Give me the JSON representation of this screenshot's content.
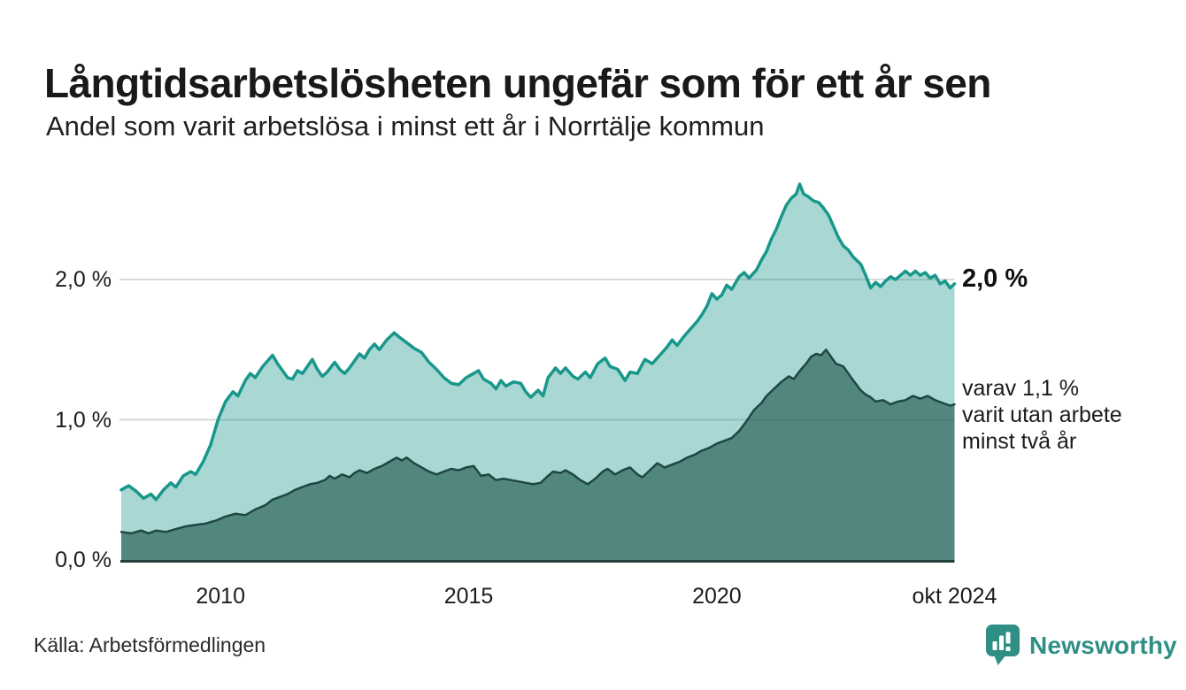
{
  "header": {
    "title": "Långtidsarbetslösheten ungefär som för ett år sen",
    "subtitle": "Andel som varit arbetslösa i minst ett år i Norrtälje kommun"
  },
  "annotations": {
    "total_end_label": "2,0 %",
    "subset_lines": [
      "varav 1,1 %",
      "varit utan arbete",
      "minst två år"
    ]
  },
  "footer": {
    "source": "Källa: Arbetsförmedlingen",
    "brand": "Newsworthy"
  },
  "colors": {
    "title": "#191919",
    "grid": "#d9d9d9",
    "axis_line": "#23403c",
    "series_total_line": "#18978a",
    "series_total_fill": "rgba(23,150,137,0.37)",
    "series_subset_line": "#1d4742",
    "series_subset_fill": "rgba(31,87,78,0.63)",
    "brand_teal": "#2f8f85"
  },
  "chart_data": {
    "type": "area",
    "title": "Långtidsarbetslösheten ungefär som för ett år sen",
    "subtitle": "Andel som varit arbetslösa i minst ett år i Norrtälje kommun",
    "xlabel": "",
    "ylabel": "",
    "x_range": [
      2008.0,
      2024.79
    ],
    "ylim": [
      0,
      2.8
    ],
    "grid_values": [
      1.0,
      2.0
    ],
    "legend_position": "right-annotations",
    "y_axis_ticks": [
      {
        "value": 0.0,
        "label": "0,0 %"
      },
      {
        "value": 1.0,
        "label": "1,0 %"
      },
      {
        "value": 2.0,
        "label": "2,0 %"
      }
    ],
    "x_axis_ticks": [
      {
        "value": 2010.0,
        "label": "2010"
      },
      {
        "value": 2015.0,
        "label": "2015"
      },
      {
        "value": 2020.0,
        "label": "2020"
      },
      {
        "value": 2024.79,
        "label": "okt 2024"
      }
    ],
    "series": [
      {
        "name": "Andel arbetslösa minst ett år",
        "end_value_label": "2,0 %",
        "end_value": 2.0,
        "points": [
          [
            2008.0,
            0.5
          ],
          [
            2008.15,
            0.53
          ],
          [
            2008.3,
            0.49
          ],
          [
            2008.45,
            0.44
          ],
          [
            2008.6,
            0.47
          ],
          [
            2008.7,
            0.43
          ],
          [
            2008.85,
            0.5
          ],
          [
            2009.0,
            0.55
          ],
          [
            2009.1,
            0.52
          ],
          [
            2009.25,
            0.6
          ],
          [
            2009.4,
            0.63
          ],
          [
            2009.5,
            0.61
          ],
          [
            2009.65,
            0.7
          ],
          [
            2009.8,
            0.82
          ],
          [
            2009.95,
            1.0
          ],
          [
            2010.1,
            1.13
          ],
          [
            2010.25,
            1.2
          ],
          [
            2010.35,
            1.17
          ],
          [
            2010.5,
            1.28
          ],
          [
            2010.6,
            1.33
          ],
          [
            2010.7,
            1.3
          ],
          [
            2010.85,
            1.38
          ],
          [
            2010.95,
            1.42
          ],
          [
            2011.05,
            1.46
          ],
          [
            2011.15,
            1.4
          ],
          [
            2011.25,
            1.35
          ],
          [
            2011.35,
            1.3
          ],
          [
            2011.45,
            1.29
          ],
          [
            2011.55,
            1.35
          ],
          [
            2011.65,
            1.33
          ],
          [
            2011.75,
            1.38
          ],
          [
            2011.85,
            1.43
          ],
          [
            2011.95,
            1.36
          ],
          [
            2012.05,
            1.31
          ],
          [
            2012.15,
            1.34
          ],
          [
            2012.3,
            1.41
          ],
          [
            2012.4,
            1.36
          ],
          [
            2012.5,
            1.33
          ],
          [
            2012.6,
            1.37
          ],
          [
            2012.7,
            1.42
          ],
          [
            2012.8,
            1.47
          ],
          [
            2012.9,
            1.44
          ],
          [
            2013.0,
            1.5
          ],
          [
            2013.1,
            1.54
          ],
          [
            2013.2,
            1.5
          ],
          [
            2013.35,
            1.57
          ],
          [
            2013.5,
            1.62
          ],
          [
            2013.6,
            1.59
          ],
          [
            2013.75,
            1.55
          ],
          [
            2013.9,
            1.51
          ],
          [
            2014.05,
            1.48
          ],
          [
            2014.2,
            1.41
          ],
          [
            2014.35,
            1.36
          ],
          [
            2014.5,
            1.3
          ],
          [
            2014.65,
            1.26
          ],
          [
            2014.8,
            1.25
          ],
          [
            2014.95,
            1.3
          ],
          [
            2015.1,
            1.33
          ],
          [
            2015.2,
            1.35
          ],
          [
            2015.3,
            1.29
          ],
          [
            2015.45,
            1.26
          ],
          [
            2015.55,
            1.22
          ],
          [
            2015.65,
            1.28
          ],
          [
            2015.75,
            1.24
          ],
          [
            2015.9,
            1.27
          ],
          [
            2016.05,
            1.26
          ],
          [
            2016.15,
            1.2
          ],
          [
            2016.25,
            1.16
          ],
          [
            2016.4,
            1.21
          ],
          [
            2016.5,
            1.17
          ],
          [
            2016.6,
            1.3
          ],
          [
            2016.75,
            1.37
          ],
          [
            2016.85,
            1.33
          ],
          [
            2016.95,
            1.37
          ],
          [
            2017.1,
            1.31
          ],
          [
            2017.2,
            1.29
          ],
          [
            2017.35,
            1.34
          ],
          [
            2017.45,
            1.3
          ],
          [
            2017.6,
            1.4
          ],
          [
            2017.75,
            1.44
          ],
          [
            2017.85,
            1.38
          ],
          [
            2018.0,
            1.36
          ],
          [
            2018.15,
            1.28
          ],
          [
            2018.25,
            1.34
          ],
          [
            2018.4,
            1.33
          ],
          [
            2018.55,
            1.43
          ],
          [
            2018.7,
            1.4
          ],
          [
            2018.85,
            1.46
          ],
          [
            2019.0,
            1.52
          ],
          [
            2019.1,
            1.57
          ],
          [
            2019.2,
            1.53
          ],
          [
            2019.35,
            1.6
          ],
          [
            2019.5,
            1.66
          ],
          [
            2019.6,
            1.7
          ],
          [
            2019.7,
            1.75
          ],
          [
            2019.8,
            1.81
          ],
          [
            2019.9,
            1.9
          ],
          [
            2020.0,
            1.86
          ],
          [
            2020.1,
            1.89
          ],
          [
            2020.2,
            1.96
          ],
          [
            2020.3,
            1.93
          ],
          [
            2020.45,
            2.02
          ],
          [
            2020.55,
            2.05
          ],
          [
            2020.65,
            2.01
          ],
          [
            2020.8,
            2.07
          ],
          [
            2020.9,
            2.14
          ],
          [
            2021.0,
            2.2
          ],
          [
            2021.1,
            2.29
          ],
          [
            2021.2,
            2.36
          ],
          [
            2021.3,
            2.45
          ],
          [
            2021.4,
            2.53
          ],
          [
            2021.5,
            2.58
          ],
          [
            2021.6,
            2.61
          ],
          [
            2021.67,
            2.68
          ],
          [
            2021.75,
            2.61
          ],
          [
            2021.85,
            2.59
          ],
          [
            2021.95,
            2.56
          ],
          [
            2022.05,
            2.55
          ],
          [
            2022.15,
            2.51
          ],
          [
            2022.25,
            2.46
          ],
          [
            2022.35,
            2.38
          ],
          [
            2022.45,
            2.3
          ],
          [
            2022.55,
            2.24
          ],
          [
            2022.65,
            2.21
          ],
          [
            2022.75,
            2.16
          ],
          [
            2022.9,
            2.11
          ],
          [
            2023.0,
            2.03
          ],
          [
            2023.1,
            1.94
          ],
          [
            2023.2,
            1.98
          ],
          [
            2023.3,
            1.95
          ],
          [
            2023.4,
            1.99
          ],
          [
            2023.5,
            2.02
          ],
          [
            2023.6,
            2.0
          ],
          [
            2023.7,
            2.03
          ],
          [
            2023.8,
            2.06
          ],
          [
            2023.9,
            2.03
          ],
          [
            2024.0,
            2.06
          ],
          [
            2024.1,
            2.03
          ],
          [
            2024.2,
            2.05
          ],
          [
            2024.3,
            2.01
          ],
          [
            2024.4,
            2.03
          ],
          [
            2024.5,
            1.97
          ],
          [
            2024.6,
            1.99
          ],
          [
            2024.7,
            1.94
          ],
          [
            2024.79,
            1.97
          ]
        ]
      },
      {
        "name": "Varav arbetslösa minst två år",
        "end_value_label": "varav 1,1 % varit utan arbete minst två år",
        "end_value": 1.1,
        "points": [
          [
            2008.0,
            0.2
          ],
          [
            2008.2,
            0.19
          ],
          [
            2008.4,
            0.21
          ],
          [
            2008.55,
            0.19
          ],
          [
            2008.7,
            0.21
          ],
          [
            2008.9,
            0.2
          ],
          [
            2009.1,
            0.22
          ],
          [
            2009.3,
            0.24
          ],
          [
            2009.5,
            0.25
          ],
          [
            2009.7,
            0.26
          ],
          [
            2009.9,
            0.28
          ],
          [
            2010.1,
            0.31
          ],
          [
            2010.3,
            0.33
          ],
          [
            2010.5,
            0.32
          ],
          [
            2010.7,
            0.36
          ],
          [
            2010.9,
            0.39
          ],
          [
            2011.05,
            0.43
          ],
          [
            2011.2,
            0.45
          ],
          [
            2011.35,
            0.47
          ],
          [
            2011.5,
            0.5
          ],
          [
            2011.65,
            0.52
          ],
          [
            2011.8,
            0.54
          ],
          [
            2011.95,
            0.55
          ],
          [
            2012.1,
            0.57
          ],
          [
            2012.2,
            0.6
          ],
          [
            2012.3,
            0.58
          ],
          [
            2012.45,
            0.61
          ],
          [
            2012.6,
            0.59
          ],
          [
            2012.7,
            0.62
          ],
          [
            2012.8,
            0.64
          ],
          [
            2012.95,
            0.62
          ],
          [
            2013.1,
            0.65
          ],
          [
            2013.25,
            0.67
          ],
          [
            2013.4,
            0.7
          ],
          [
            2013.55,
            0.73
          ],
          [
            2013.65,
            0.71
          ],
          [
            2013.75,
            0.73
          ],
          [
            2013.9,
            0.69
          ],
          [
            2014.05,
            0.66
          ],
          [
            2014.2,
            0.63
          ],
          [
            2014.35,
            0.61
          ],
          [
            2014.5,
            0.63
          ],
          [
            2014.65,
            0.65
          ],
          [
            2014.8,
            0.64
          ],
          [
            2014.95,
            0.66
          ],
          [
            2015.1,
            0.67
          ],
          [
            2015.25,
            0.6
          ],
          [
            2015.4,
            0.61
          ],
          [
            2015.55,
            0.57
          ],
          [
            2015.7,
            0.58
          ],
          [
            2015.85,
            0.57
          ],
          [
            2016.0,
            0.56
          ],
          [
            2016.15,
            0.55
          ],
          [
            2016.3,
            0.54
          ],
          [
            2016.45,
            0.55
          ],
          [
            2016.6,
            0.6
          ],
          [
            2016.7,
            0.63
          ],
          [
            2016.85,
            0.62
          ],
          [
            2016.95,
            0.64
          ],
          [
            2017.1,
            0.61
          ],
          [
            2017.25,
            0.57
          ],
          [
            2017.4,
            0.54
          ],
          [
            2017.55,
            0.58
          ],
          [
            2017.7,
            0.63
          ],
          [
            2017.8,
            0.65
          ],
          [
            2017.95,
            0.61
          ],
          [
            2018.1,
            0.64
          ],
          [
            2018.25,
            0.66
          ],
          [
            2018.4,
            0.61
          ],
          [
            2018.5,
            0.59
          ],
          [
            2018.65,
            0.64
          ],
          [
            2018.8,
            0.69
          ],
          [
            2018.95,
            0.66
          ],
          [
            2019.1,
            0.68
          ],
          [
            2019.25,
            0.7
          ],
          [
            2019.4,
            0.73
          ],
          [
            2019.55,
            0.75
          ],
          [
            2019.7,
            0.78
          ],
          [
            2019.85,
            0.8
          ],
          [
            2020.0,
            0.83
          ],
          [
            2020.15,
            0.85
          ],
          [
            2020.3,
            0.87
          ],
          [
            2020.45,
            0.92
          ],
          [
            2020.6,
            0.99
          ],
          [
            2020.75,
            1.07
          ],
          [
            2020.9,
            1.12
          ],
          [
            2021.0,
            1.17
          ],
          [
            2021.15,
            1.22
          ],
          [
            2021.3,
            1.27
          ],
          [
            2021.45,
            1.31
          ],
          [
            2021.55,
            1.29
          ],
          [
            2021.7,
            1.36
          ],
          [
            2021.8,
            1.4
          ],
          [
            2021.9,
            1.45
          ],
          [
            2022.0,
            1.47
          ],
          [
            2022.1,
            1.46
          ],
          [
            2022.2,
            1.5
          ],
          [
            2022.3,
            1.45
          ],
          [
            2022.4,
            1.4
          ],
          [
            2022.55,
            1.38
          ],
          [
            2022.65,
            1.33
          ],
          [
            2022.75,
            1.28
          ],
          [
            2022.9,
            1.21
          ],
          [
            2023.0,
            1.18
          ],
          [
            2023.1,
            1.16
          ],
          [
            2023.2,
            1.13
          ],
          [
            2023.35,
            1.14
          ],
          [
            2023.5,
            1.11
          ],
          [
            2023.65,
            1.13
          ],
          [
            2023.8,
            1.14
          ],
          [
            2023.95,
            1.17
          ],
          [
            2024.1,
            1.15
          ],
          [
            2024.25,
            1.17
          ],
          [
            2024.4,
            1.14
          ],
          [
            2024.55,
            1.12
          ],
          [
            2024.7,
            1.1
          ],
          [
            2024.79,
            1.11
          ]
        ]
      }
    ]
  }
}
